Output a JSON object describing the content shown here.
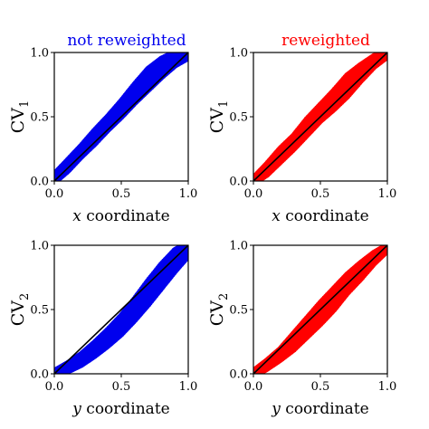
{
  "colors": {
    "blue": "#0000ee",
    "red": "#ff0000",
    "line": "#000000"
  },
  "chart_data": [
    {
      "type": "scatter",
      "title": "not reweighted",
      "title_color": "#0000ee",
      "xlabel_var": "x",
      "xlabel_rest": " coordinate",
      "ylabel_main": "CV",
      "ylabel_sub": "1",
      "xlim": [
        0,
        1
      ],
      "ylim": [
        0,
        1
      ],
      "xticks": [
        "0.0",
        "0.5",
        "1.0"
      ],
      "yticks": [
        "0.0",
        "0.5",
        "1.0"
      ],
      "color": "#0000ee",
      "reference_line": [
        [
          0,
          0
        ],
        [
          1,
          1
        ]
      ],
      "band_center": [
        [
          0.0,
          0.02
        ],
        [
          0.1,
          0.12
        ],
        [
          0.2,
          0.23
        ],
        [
          0.3,
          0.34
        ],
        [
          0.4,
          0.45
        ],
        [
          0.5,
          0.56
        ],
        [
          0.6,
          0.68
        ],
        [
          0.7,
          0.79
        ],
        [
          0.8,
          0.88
        ],
        [
          0.9,
          0.95
        ],
        [
          1.0,
          0.99
        ]
      ],
      "band_halfwidth": [
        0.03,
        0.04,
        0.04,
        0.05,
        0.05,
        0.06,
        0.07,
        0.08,
        0.07,
        0.05,
        0.03
      ]
    },
    {
      "type": "scatter",
      "title": "reweighted",
      "title_color": "#ff0000",
      "xlabel_var": "x",
      "xlabel_rest": " coordinate",
      "ylabel_main": "CV",
      "ylabel_sub": "1",
      "xlim": [
        0,
        1
      ],
      "ylim": [
        0,
        1
      ],
      "xticks": [
        "0.0",
        "0.5",
        "1.0"
      ],
      "yticks": [
        "0.0",
        "0.5",
        "1.0"
      ],
      "color": "#ff0000",
      "reference_line": [
        [
          0,
          0
        ],
        [
          1,
          1
        ]
      ],
      "band_center": [
        [
          0.0,
          0.0
        ],
        [
          0.1,
          0.09
        ],
        [
          0.2,
          0.2
        ],
        [
          0.3,
          0.3
        ],
        [
          0.4,
          0.42
        ],
        [
          0.5,
          0.53
        ],
        [
          0.6,
          0.63
        ],
        [
          0.7,
          0.74
        ],
        [
          0.8,
          0.84
        ],
        [
          0.9,
          0.93
        ],
        [
          1.0,
          0.99
        ]
      ],
      "band_halfwidth": [
        0.02,
        0.04,
        0.05,
        0.05,
        0.06,
        0.06,
        0.07,
        0.08,
        0.06,
        0.04,
        0.02
      ]
    },
    {
      "type": "scatter",
      "title": "",
      "title_color": "#000000",
      "xlabel_var": "y",
      "xlabel_rest": " coordinate",
      "ylabel_main": "CV",
      "ylabel_sub": "2",
      "xlim": [
        0,
        1
      ],
      "ylim": [
        0,
        1
      ],
      "xticks": [
        "0.0",
        "0.5",
        "1.0"
      ],
      "yticks": [
        "0.0",
        "0.5",
        "1.0"
      ],
      "color": "#0000ee",
      "reference_line": [
        [
          0,
          0
        ],
        [
          1,
          1
        ]
      ],
      "band_center": [
        [
          0.0,
          0.0
        ],
        [
          0.1,
          0.05
        ],
        [
          0.2,
          0.11
        ],
        [
          0.3,
          0.19
        ],
        [
          0.4,
          0.28
        ],
        [
          0.5,
          0.38
        ],
        [
          0.6,
          0.5
        ],
        [
          0.7,
          0.63
        ],
        [
          0.8,
          0.76
        ],
        [
          0.9,
          0.88
        ],
        [
          1.0,
          0.97
        ]
      ],
      "band_halfwidth": [
        0.02,
        0.03,
        0.04,
        0.05,
        0.06,
        0.07,
        0.08,
        0.09,
        0.09,
        0.08,
        0.05
      ]
    },
    {
      "type": "scatter",
      "title": "",
      "title_color": "#000000",
      "xlabel_var": "y",
      "xlabel_rest": " coordinate",
      "ylabel_main": "CV",
      "ylabel_sub": "2",
      "xlim": [
        0,
        1
      ],
      "ylim": [
        0,
        1
      ],
      "xticks": [
        "0.0",
        "0.5",
        "1.0"
      ],
      "yticks": [
        "0.0",
        "0.5",
        "1.0"
      ],
      "color": "#ff0000",
      "reference_line": [
        [
          0,
          0
        ],
        [
          1,
          1
        ]
      ],
      "band_center": [
        [
          0.0,
          0.0
        ],
        [
          0.1,
          0.07
        ],
        [
          0.2,
          0.15
        ],
        [
          0.3,
          0.25
        ],
        [
          0.4,
          0.36
        ],
        [
          0.5,
          0.47
        ],
        [
          0.6,
          0.58
        ],
        [
          0.7,
          0.7
        ],
        [
          0.8,
          0.8
        ],
        [
          0.9,
          0.9
        ],
        [
          1.0,
          0.98
        ]
      ],
      "band_halfwidth": [
        0.02,
        0.03,
        0.04,
        0.06,
        0.07,
        0.08,
        0.08,
        0.07,
        0.06,
        0.04,
        0.02
      ]
    }
  ]
}
